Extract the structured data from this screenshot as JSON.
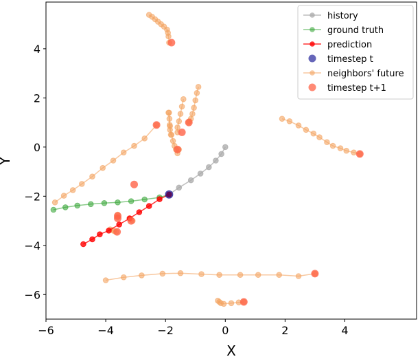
{
  "chart_data": {
    "type": "line",
    "title": "",
    "xlabel": "X",
    "ylabel": "Y",
    "xlim": [
      -6.0,
      6.4
    ],
    "ylim": [
      -7.0,
      5.9
    ],
    "xticks": [
      -6,
      -4,
      -2,
      0,
      2,
      4
    ],
    "yticks": [
      -6,
      -4,
      -2,
      0,
      2,
      4
    ],
    "xtick_labels": [
      "−6",
      "−4",
      "−2",
      "0",
      "2",
      "4"
    ],
    "ytick_labels": [
      "−6",
      "−4",
      "−2",
      "0",
      "2",
      "4"
    ],
    "legend_position": "top-right",
    "legend": [
      {
        "label": "history",
        "color": "#a9a9a9",
        "style": "line-marker",
        "alpha": 0.75
      },
      {
        "label": "ground truth",
        "color": "#2ca02c",
        "style": "line-marker",
        "alpha": 0.55
      },
      {
        "label": "prediction",
        "color": "#ff0000",
        "style": "line-marker",
        "alpha": 0.8
      },
      {
        "label": "timestep t",
        "color": "#00008b",
        "style": "marker",
        "alpha": 0.6
      },
      {
        "label": "neighbors' future",
        "color": "#f4a460",
        "style": "line-marker",
        "alpha": 0.6
      },
      {
        "label": "timestep t+1",
        "color": "#ff6347",
        "style": "marker-large",
        "alpha": 0.75
      }
    ],
    "series": [
      {
        "name": "history",
        "color": "#a9a9a9",
        "alpha": 0.75,
        "x": [
          0,
          -0.13,
          -0.32,
          -0.55,
          -0.83,
          -1.15,
          -1.55,
          -1.88
        ],
        "y": [
          0,
          -0.28,
          -0.55,
          -0.82,
          -1.08,
          -1.35,
          -1.65,
          -1.93
        ]
      },
      {
        "name": "ground truth",
        "color": "#2ca02c",
        "alpha": 0.55,
        "x": [
          -1.88,
          -2.2,
          -2.7,
          -3.15,
          -3.6,
          -4.05,
          -4.5,
          -4.95,
          -5.35,
          -5.75
        ],
        "y": [
          -1.93,
          -2.05,
          -2.13,
          -2.2,
          -2.25,
          -2.28,
          -2.32,
          -2.38,
          -2.45,
          -2.55
        ]
      },
      {
        "name": "prediction",
        "color": "#ff0000",
        "alpha": 0.8,
        "x": [
          -1.88,
          -2.2,
          -2.55,
          -2.88,
          -3.2,
          -3.55,
          -3.9,
          -4.2,
          -4.45,
          -4.75
        ],
        "y": [
          -1.93,
          -2.12,
          -2.4,
          -2.65,
          -2.9,
          -3.15,
          -3.4,
          -3.55,
          -3.75,
          -3.95
        ]
      },
      {
        "name": "timestep t",
        "color": "#00008b",
        "alpha": 0.6,
        "x": [
          -1.88
        ],
        "y": [
          -1.93
        ]
      }
    ],
    "neighbors": [
      {
        "x": [
          -2.55,
          -2.45,
          -2.35,
          -2.25,
          -2.15,
          -2.05,
          -1.95,
          -1.92,
          -1.9,
          -1.88
        ],
        "y": [
          5.38,
          5.3,
          5.2,
          5.1,
          5.0,
          4.9,
          4.78,
          4.65,
          4.5,
          4.25
        ]
      },
      {
        "x": [
          -5.7,
          -5.4,
          -5.1,
          -4.8,
          -4.45,
          -4.1,
          -3.75,
          -3.4,
          -3.05,
          -2.7,
          -2.3
        ],
        "y": [
          -2.25,
          -1.98,
          -1.75,
          -1.5,
          -1.2,
          -0.85,
          -0.55,
          -0.22,
          0.05,
          0.35,
          0.9
        ]
      },
      {
        "x": [
          -1.9,
          -1.85,
          -1.8,
          -1.75,
          -1.7,
          -1.65,
          -1.6,
          -1.55
        ],
        "y": [
          1.4,
          0.85,
          0.5,
          0.25,
          0.05,
          -0.1,
          -0.25,
          -0.1
        ]
      },
      {
        "x": [
          -1.88,
          -1.87,
          -1.86,
          -1.85,
          -1.82
        ],
        "y": [
          1.4,
          1.15,
          0.9,
          0.7,
          0.5
        ]
      },
      {
        "x": [
          -1.4,
          -1.45,
          -1.5,
          -1.55,
          -1.6,
          -1.6
        ],
        "y": [
          1.95,
          1.65,
          1.35,
          1.05,
          0.8,
          0.6
        ]
      },
      {
        "x": [
          -0.9,
          -0.95,
          -1.0,
          -1.05,
          -1.1,
          -1.15,
          -1.2,
          -1.23
        ],
        "y": [
          2.45,
          2.2,
          1.9,
          1.6,
          1.35,
          1.15,
          1.05,
          1.0
        ]
      },
      {
        "x": [
          1.9,
          2.15,
          2.45,
          2.7,
          2.95,
          3.15,
          3.4,
          3.6,
          3.85,
          4.05,
          4.3,
          4.5
        ],
        "y": [
          1.15,
          1.05,
          0.88,
          0.7,
          0.55,
          0.4,
          0.2,
          0.05,
          -0.05,
          -0.15,
          -0.22,
          -0.28
        ]
      },
      {
        "x": [
          -3.6,
          -3.6
        ],
        "y": [
          -2.75,
          -2.85
        ]
      },
      {
        "x": [
          -3.85,
          -3.78,
          -3.72,
          -3.65
        ],
        "y": [
          -3.35,
          -3.38,
          -3.42,
          -3.45
        ]
      },
      {
        "x": [
          -3.2,
          -3.15,
          -3.1
        ],
        "y": [
          -2.9,
          -2.95,
          -3.0
        ]
      },
      {
        "x": [
          -4.0,
          -3.4,
          -2.8,
          -2.1,
          -1.5,
          -0.8,
          -0.2,
          0.5,
          1.1,
          1.8,
          2.45,
          3.0
        ],
        "y": [
          -5.42,
          -5.3,
          -5.22,
          -5.15,
          -5.13,
          -5.17,
          -5.2,
          -5.2,
          -5.2,
          -5.2,
          -5.25,
          -5.15
        ]
      },
      {
        "x": [
          -0.25,
          -0.2,
          -0.15,
          -0.05,
          0.2,
          0.45,
          0.62
        ],
        "y": [
          -6.25,
          -6.3,
          -6.35,
          -6.38,
          -6.35,
          -6.32,
          -6.3
        ]
      }
    ],
    "timestep_t1": {
      "color": "#ff6347",
      "x": [
        -1.8,
        -2.3,
        -3.05,
        -1.6,
        -1.45,
        -1.22,
        4.5,
        -3.6,
        -3.6,
        -3.62,
        -3.15,
        3.0,
        0.62
      ],
      "y": [
        4.25,
        0.9,
        -1.52,
        -0.1,
        0.6,
        1.0,
        -0.28,
        -2.8,
        -2.9,
        -3.45,
        -3.0,
        -5.15,
        -6.3
      ]
    }
  }
}
